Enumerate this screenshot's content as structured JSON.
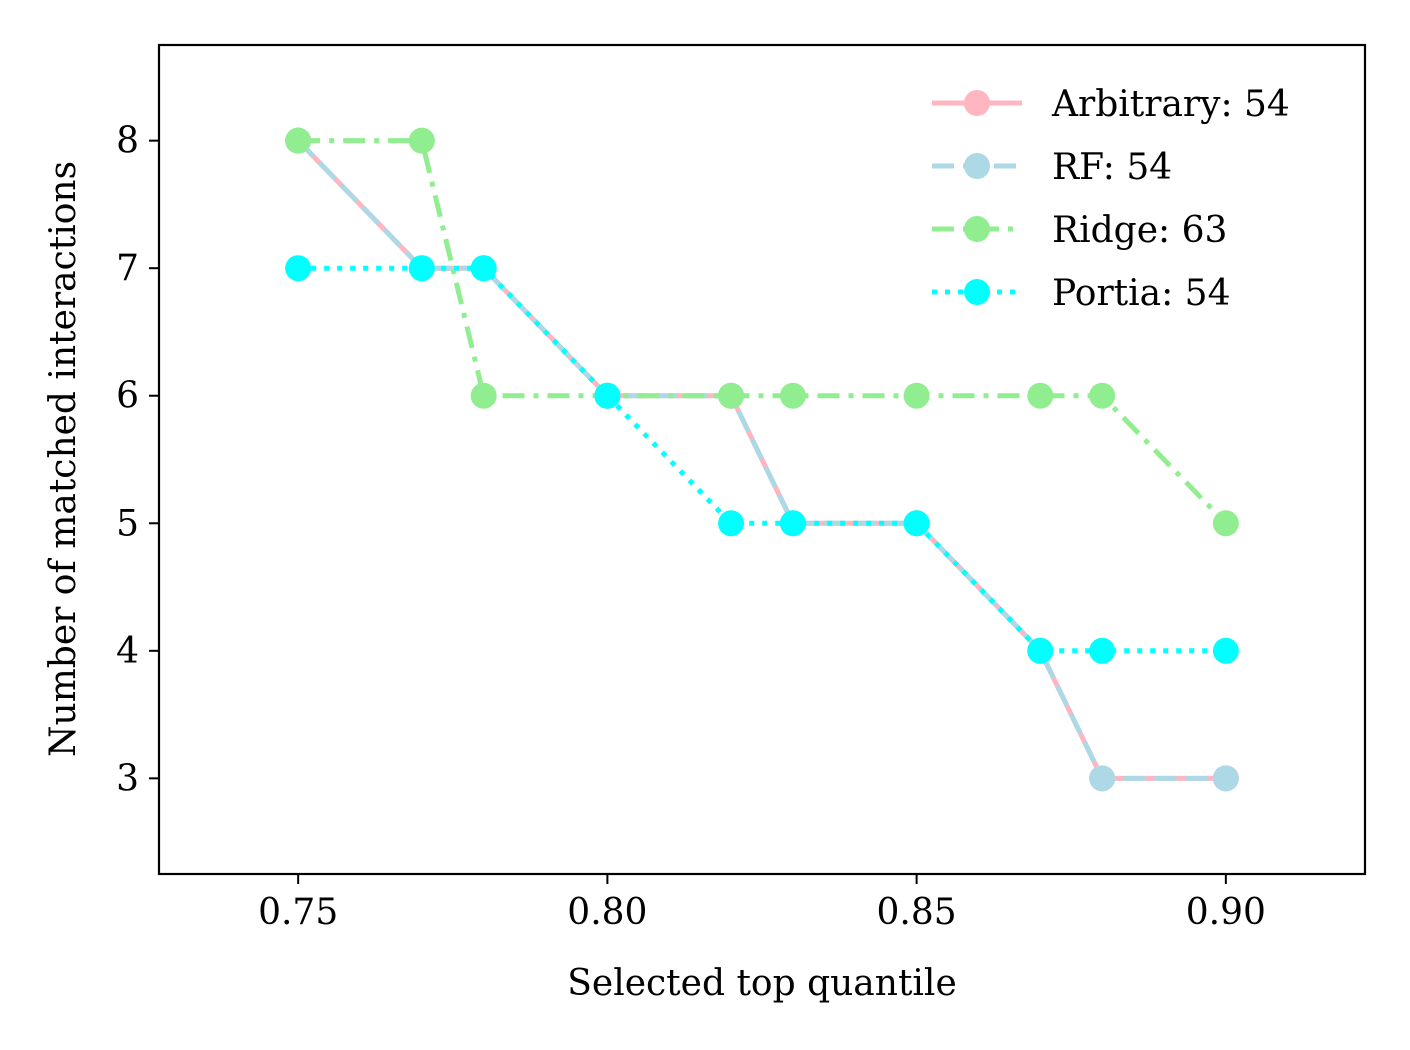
{
  "chart_data": {
    "type": "line",
    "title": "",
    "xlabel": "Selected top quantile",
    "ylabel": "Number of matched interactions",
    "xlim": [
      0.7275,
      0.9225
    ],
    "ylim": [
      2.25,
      8.75
    ],
    "x_ticks": [
      "0.75",
      "0.80",
      "0.85",
      "0.90"
    ],
    "x_tick_values": [
      0.75,
      0.8,
      0.85,
      0.9
    ],
    "y_ticks": [
      "3",
      "4",
      "5",
      "6",
      "7",
      "8"
    ],
    "y_tick_values": [
      3,
      4,
      5,
      6,
      7,
      8
    ],
    "grid": false,
    "legend_position": "top-right",
    "x": [
      0.75,
      0.77,
      0.78,
      0.8,
      0.82,
      0.83,
      0.85,
      0.87,
      0.88,
      0.9
    ],
    "series": [
      {
        "name": "Arbitrary: 54",
        "color": "#ffb6c1",
        "dash": "solid",
        "values": [
          8,
          7,
          7,
          6,
          6,
          5,
          5,
          4,
          3,
          3
        ]
      },
      {
        "name": "RF: 54",
        "color": "#add8e6",
        "dash": "dashed",
        "values": [
          8,
          7,
          7,
          6,
          6,
          5,
          5,
          4,
          3,
          3
        ]
      },
      {
        "name": "Ridge: 63",
        "color": "#90ee90",
        "dash": "dashdot",
        "values": [
          8,
          8,
          6,
          6,
          6,
          6,
          6,
          6,
          6,
          5
        ]
      },
      {
        "name": "Portia: 54",
        "color": "#00ffff",
        "dash": "dotted",
        "values": [
          7,
          7,
          7,
          6,
          5,
          5,
          5,
          4,
          4,
          4
        ]
      }
    ]
  }
}
